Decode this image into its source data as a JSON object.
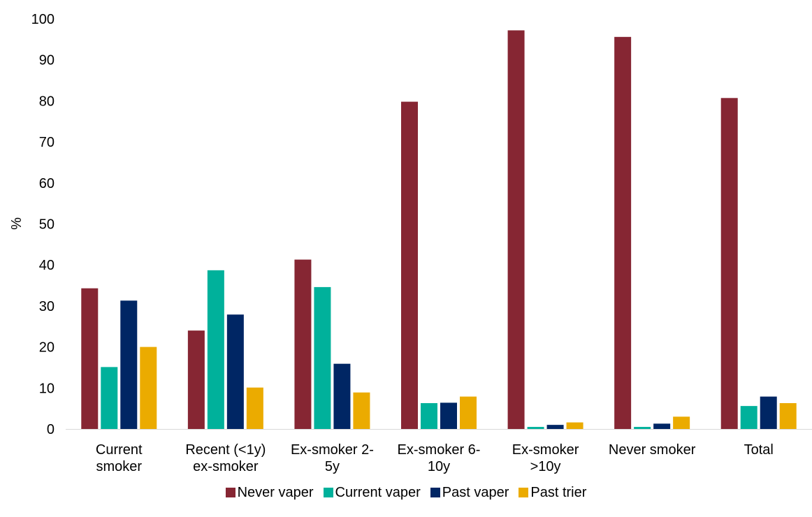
{
  "chart_data": {
    "type": "bar",
    "title": "",
    "xlabel": "",
    "ylabel": "%",
    "ylim": [
      0,
      100
    ],
    "yticks": [
      0,
      10,
      20,
      30,
      40,
      50,
      60,
      70,
      80,
      90,
      100
    ],
    "grid": false,
    "legend_position": "bottom",
    "categories": [
      [
        "Current",
        "smoker"
      ],
      [
        "Recent (<1y)",
        "ex-smoker"
      ],
      [
        "Ex-smoker 2-",
        "5y"
      ],
      [
        "Ex-smoker 6-",
        "10y"
      ],
      [
        "Ex-smoker",
        ">10y"
      ],
      [
        "Never smoker"
      ],
      [
        "Total"
      ]
    ],
    "series": [
      {
        "name": "Never vaper",
        "color": "#862633",
        "values": [
          34.3,
          24.0,
          41.3,
          79.8,
          97.2,
          95.6,
          80.7
        ]
      },
      {
        "name": "Current vaper",
        "color": "#00B19B",
        "values": [
          15.1,
          38.7,
          34.6,
          6.3,
          0.5,
          0.5,
          5.6
        ]
      },
      {
        "name": "Past vaper",
        "color": "#002664",
        "values": [
          31.3,
          27.9,
          15.9,
          6.4,
          1.0,
          1.3,
          7.9
        ]
      },
      {
        "name": "Past trier",
        "color": "#EBAB00",
        "values": [
          20.0,
          10.1,
          8.9,
          7.9,
          1.6,
          3.0,
          6.3
        ]
      }
    ]
  }
}
